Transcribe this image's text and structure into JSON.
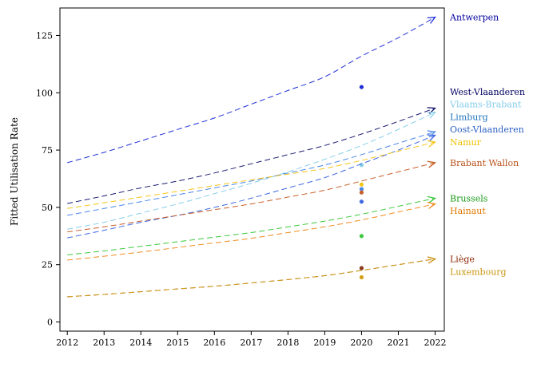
{
  "chart_data": {
    "type": "line",
    "xlabel": "",
    "ylabel": "Fitted Utilisation Rate",
    "xlim": [
      2011.8,
      2022.25
    ],
    "ylim": [
      -4,
      137
    ],
    "x_ticks": [
      "2012",
      "2013",
      "2014",
      "2015",
      "2016",
      "2017",
      "2018",
      "2019",
      "2020",
      "2021",
      "2022"
    ],
    "y_ticks": [
      "0",
      "25",
      "50",
      "75",
      "100",
      "125"
    ],
    "x_tick_values": [
      2012,
      2013,
      2014,
      2015,
      2016,
      2017,
      2018,
      2019,
      2020,
      2021,
      2022
    ],
    "y_tick_values": [
      0,
      25,
      50,
      75,
      100,
      125
    ],
    "x": [
      2012,
      2013,
      2014,
      2015,
      2016,
      2017,
      2018,
      2019,
      2020,
      2021,
      2022
    ],
    "legend": "labels at line ends (right)",
    "grid": false,
    "series": [
      {
        "name": "Antwerpen",
        "color": "#1f2fd6",
        "label_color": "#0000a0",
        "values": [
          69.5,
          74,
          79,
          84,
          89,
          95,
          101,
          107,
          116,
          124,
          133
        ],
        "point2020": 102.5
      },
      {
        "name": "West-Vlaanderen",
        "color": "#1a1a70",
        "label_color": "#000060",
        "values": [
          51.7,
          55,
          58.5,
          61.5,
          65,
          69,
          73,
          77,
          82,
          87.5,
          93.3
        ],
        "point2020": null
      },
      {
        "name": "Vlaams-Brabant",
        "color": "#87ceeb",
        "label_color": "#87ceeb",
        "values": [
          40.5,
          43.5,
          47.5,
          51.5,
          56,
          60.5,
          65.5,
          71,
          77,
          84,
          91.5
        ],
        "point2020": 68.5
      },
      {
        "name": "Limburg",
        "color": "#4169e1",
        "label_color": "#1e73be",
        "values": [
          36.7,
          40,
          43.5,
          46.5,
          50,
          54,
          58.5,
          63,
          69,
          75,
          81.5
        ],
        "point2020": 52.5
      },
      {
        "name": "Oost-Vlaanderen",
        "color": "#4a86e8",
        "label_color": "#2b5fc4",
        "values": [
          46.5,
          49.5,
          52.5,
          55.5,
          58.5,
          61.5,
          65,
          68.5,
          73,
          78,
          83
        ],
        "point2020": 58
      },
      {
        "name": "Namur",
        "color": "#f5c518",
        "label_color": "#f0c000",
        "values": [
          49.5,
          52,
          54.5,
          57,
          59.5,
          62,
          64.5,
          67,
          70.5,
          74.5,
          78.5
        ],
        "point2020": 60
      },
      {
        "name": "Brabant Wallon",
        "color": "#c8602a",
        "label_color": "#b8501a",
        "values": [
          39.3,
          41.5,
          44,
          46.5,
          49,
          51.5,
          54.5,
          57.5,
          61.5,
          65.5,
          69.5
        ],
        "point2020": 56.5
      },
      {
        "name": "Brussels",
        "color": "#3cc83c",
        "label_color": "#1a9a1a",
        "values": [
          29.3,
          31,
          33,
          35,
          37,
          39,
          41.5,
          44,
          47,
          50.5,
          54
        ],
        "point2020": 37.5
      },
      {
        "name": "Hainaut",
        "color": "#f08c1e",
        "label_color": "#e07800",
        "values": [
          27,
          28.7,
          30.5,
          32.5,
          34.5,
          36.5,
          39,
          41.5,
          44.5,
          48,
          51.5
        ],
        "point2020": null
      },
      {
        "name": "Liège",
        "color": "#8b3a1a",
        "label_color": "#8b2500",
        "values": [
          11,
          12,
          13.2,
          14.4,
          15.6,
          17,
          18.5,
          20.2,
          22.5,
          25,
          27.5
        ],
        "point2020": 23.5
      },
      {
        "name": "Luxembourg",
        "color": "#d4a017",
        "label_color": "#c89610",
        "values": [
          11,
          12,
          13.2,
          14.4,
          15.6,
          17,
          18.5,
          20.2,
          22.5,
          25,
          27.5
        ],
        "point2020": 19.5
      }
    ]
  }
}
